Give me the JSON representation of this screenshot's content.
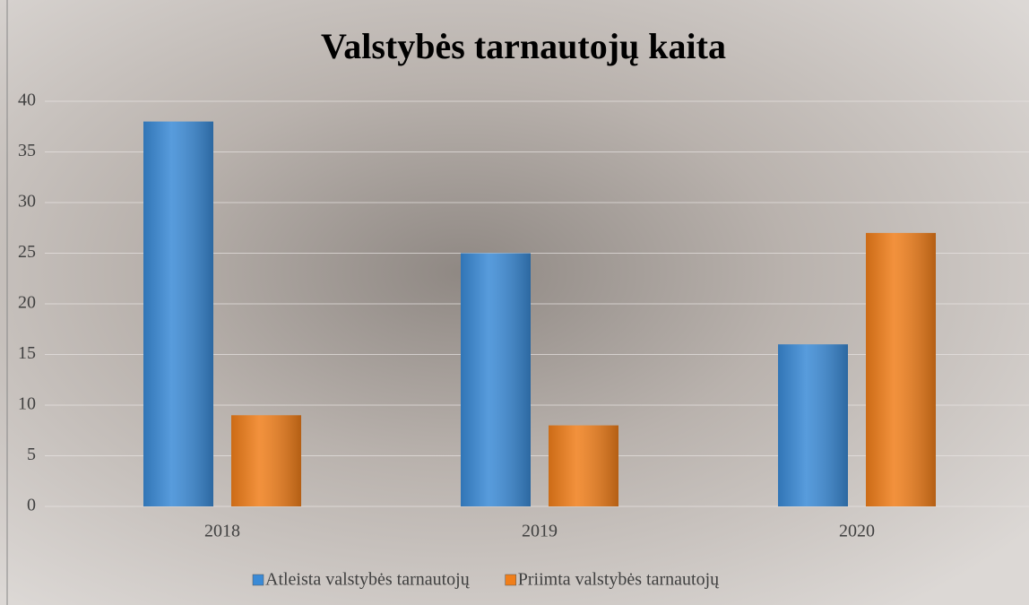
{
  "chart_data": {
    "type": "bar",
    "title": "Valstybės tarnautojų kaita",
    "categories": [
      "2018",
      "2019",
      "2020"
    ],
    "series": [
      {
        "name": "Atleista valstybės tarnautojų",
        "color": "#3a8ad6",
        "values": [
          38,
          25,
          16
        ]
      },
      {
        "name": "Priimta valstybės tarnautojų",
        "color": "#f07e1a",
        "values": [
          9,
          8,
          27
        ]
      }
    ],
    "ylim": [
      0,
      40
    ],
    "yticks": [
      0,
      5,
      10,
      15,
      20,
      25,
      30,
      35,
      40
    ],
    "grid": true,
    "legend": "bottom"
  }
}
